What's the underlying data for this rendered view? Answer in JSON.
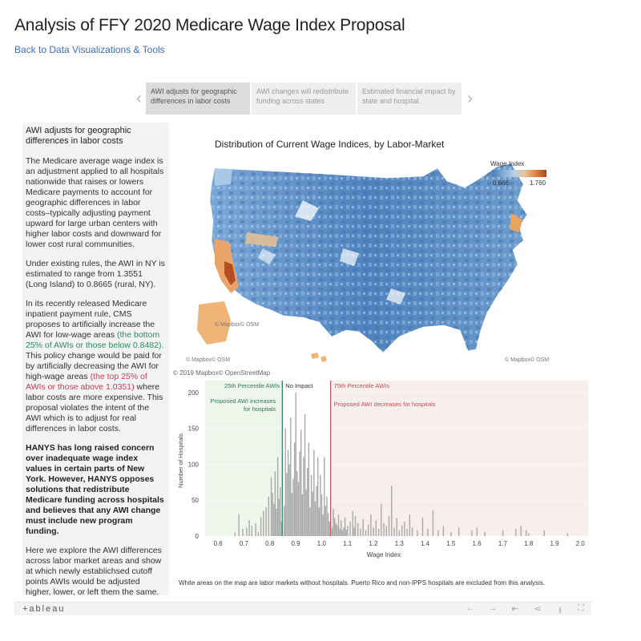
{
  "header": {
    "title": "Analysis of FFY 2020 Medicare Wage Index Proposal",
    "back_link": "Back to Data Visualizations & Tools"
  },
  "story": {
    "tabs": [
      {
        "label": "AWI adjusts for geographic differences in labor costs",
        "active": true
      },
      {
        "label": "AWI changes will redistribute funding across states",
        "active": false
      },
      {
        "label": "Estimated financial impact by state and hospital.",
        "active": false
      }
    ],
    "prev_icon": "chevron-left-icon",
    "next_icon": "chevron-right-icon"
  },
  "panel": {
    "heading": "AWI adjusts for geographic differences in labor costs",
    "p1": "The Medicare average wage index is an adjustment applied to all hospitals nationwide that raises or lowers Medicare payments to account for geographic differences in labor costs–typically adjusting payment upward for large urban centers with higher labor costs and downward for lower cost rural communities.",
    "p2": "Under existing rules, the AWI in NY is estimated to range from 1.3551 (Long Island) to 0.8665 (rural, NY).",
    "p3_a": "In its recently released Medicare inpatient payment rule, CMS proposes to artificially increase the AWI for low-wage areas ",
    "p3_green": "(the bottom 25% of AWIs or those below 0.8482).",
    "p3_b": "  This policy change would be paid for by artificially decreasing the AWI for high-wage areas ",
    "p3_red": "(the top 25% of AWIs or those above 1.0351)",
    "p3_c": " where labor costs are more expensive.  This proposal violates the intent of the AWI which is to adjust for real differences in labor costs.",
    "p4": "HANYS has long raised concern over inadequate wage index values in certain parts of New York.  However, HANYS opposes solutions that redistribute Medicare funding across hospitals and believes that any AWI change must include new program funding.",
    "p5": "Here we explore the AWI differences across labor market areas and show at which newly establichsed cutoff points AWIs would be adjusted higher, lower, or left them the same."
  },
  "map": {
    "title": "Distribution of Current Wage Indices, by Labor-Market",
    "legend_title": "Wage Index",
    "legend_min": "0.666",
    "legend_max": "1.760",
    "attribution_inner": "© Mapbox© OSM",
    "attribution_left": "© Mapbox© OSM",
    "attribution_right": "© Mapbox© OSM",
    "credit": "© 2019 Mapbox© OpenStreetMap"
  },
  "chart_data": {
    "type": "bar",
    "xlabel": "Wage Index",
    "ylabel": "Number of Hospitals",
    "xlim": [
      0.55,
      2.03
    ],
    "ylim": [
      0,
      210
    ],
    "xticks": [
      "0.6",
      "0.7",
      "0.8",
      "0.9",
      "1.0",
      "1.1",
      "1.2",
      "1.3",
      "1.4",
      "1.5",
      "1.6",
      "1.7",
      "1.8",
      "1.9",
      "2.0"
    ],
    "yticks": [
      "0",
      "50",
      "100",
      "150",
      "200"
    ],
    "bin_width": 0.005,
    "bins": [
      [
        0.665,
        5
      ],
      [
        0.68,
        30
      ],
      [
        0.695,
        10
      ],
      [
        0.71,
        12
      ],
      [
        0.72,
        22
      ],
      [
        0.73,
        14
      ],
      [
        0.745,
        18
      ],
      [
        0.755,
        6
      ],
      [
        0.765,
        26
      ],
      [
        0.775,
        35
      ],
      [
        0.785,
        40
      ],
      [
        0.795,
        55
      ],
      [
        0.805,
        82
      ],
      [
        0.81,
        60
      ],
      [
        0.815,
        45
      ],
      [
        0.82,
        90
      ],
      [
        0.825,
        38
      ],
      [
        0.83,
        110
      ],
      [
        0.835,
        52
      ],
      [
        0.84,
        68
      ],
      [
        0.845,
        20
      ],
      [
        0.855,
        42
      ],
      [
        0.86,
        150
      ],
      [
        0.865,
        88
      ],
      [
        0.87,
        120
      ],
      [
        0.875,
        100
      ],
      [
        0.88,
        165
      ],
      [
        0.885,
        60
      ],
      [
        0.89,
        80
      ],
      [
        0.895,
        130
      ],
      [
        0.9,
        200
      ],
      [
        0.905,
        90
      ],
      [
        0.91,
        75
      ],
      [
        0.915,
        118
      ],
      [
        0.92,
        148
      ],
      [
        0.925,
        58
      ],
      [
        0.93,
        110
      ],
      [
        0.935,
        170
      ],
      [
        0.94,
        65
      ],
      [
        0.945,
        95
      ],
      [
        0.95,
        130
      ],
      [
        0.955,
        40
      ],
      [
        0.96,
        85
      ],
      [
        0.965,
        62
      ],
      [
        0.97,
        120
      ],
      [
        0.975,
        48
      ],
      [
        0.98,
        70
      ],
      [
        0.985,
        110
      ],
      [
        0.99,
        40
      ],
      [
        0.995,
        85
      ],
      [
        1.0,
        58
      ],
      [
        1.005,
        30
      ],
      [
        1.01,
        110
      ],
      [
        1.015,
        42
      ],
      [
        1.02,
        55
      ],
      [
        1.025,
        32
      ],
      [
        1.03,
        20
      ],
      [
        1.04,
        12
      ],
      [
        1.045,
        38
      ],
      [
        1.05,
        25
      ],
      [
        1.055,
        18
      ],
      [
        1.06,
        15
      ],
      [
        1.065,
        30
      ],
      [
        1.07,
        10
      ],
      [
        1.075,
        22
      ],
      [
        1.08,
        8
      ],
      [
        1.085,
        12
      ],
      [
        1.09,
        26
      ],
      [
        1.095,
        9
      ],
      [
        1.1,
        14
      ],
      [
        1.11,
        20
      ],
      [
        1.12,
        35
      ],
      [
        1.125,
        12
      ],
      [
        1.13,
        28
      ],
      [
        1.14,
        18
      ],
      [
        1.15,
        10
      ],
      [
        1.16,
        24
      ],
      [
        1.17,
        8
      ],
      [
        1.18,
        16
      ],
      [
        1.19,
        30
      ],
      [
        1.2,
        12
      ],
      [
        1.21,
        22
      ],
      [
        1.22,
        10
      ],
      [
        1.23,
        45
      ],
      [
        1.24,
        18
      ],
      [
        1.25,
        14
      ],
      [
        1.26,
        28
      ],
      [
        1.27,
        70
      ],
      [
        1.28,
        12
      ],
      [
        1.29,
        25
      ],
      [
        1.3,
        8
      ],
      [
        1.31,
        15
      ],
      [
        1.32,
        20
      ],
      [
        1.33,
        10
      ],
      [
        1.34,
        30
      ],
      [
        1.35,
        12
      ],
      [
        1.37,
        8
      ],
      [
        1.39,
        26
      ],
      [
        1.41,
        10
      ],
      [
        1.43,
        36
      ],
      [
        1.45,
        8
      ],
      [
        1.47,
        14
      ],
      [
        1.5,
        6
      ],
      [
        1.53,
        12
      ],
      [
        1.58,
        8
      ],
      [
        1.6,
        12
      ],
      [
        1.63,
        6
      ],
      [
        1.7,
        8
      ],
      [
        1.75,
        10
      ],
      [
        1.77,
        14
      ],
      [
        1.79,
        8
      ],
      [
        1.8,
        4
      ],
      [
        1.86,
        8
      ],
      [
        1.95,
        4
      ]
    ],
    "regions": [
      {
        "from": 0.55,
        "to": 0.8482,
        "color": "#eef5ea"
      },
      {
        "from": 1.0351,
        "to": 2.03,
        "color": "#f7efec"
      }
    ],
    "reference_lines": [
      {
        "x": 0.8482,
        "color": "#2a7a5a",
        "label": "25th Percentile AWIs"
      },
      {
        "x": 1.0351,
        "color": "#c54a5a",
        "label": "75th Percentile AWIs"
      }
    ],
    "annotations": {
      "no_impact": "No Impact",
      "increase": "Proposed AWI increases for hospitals",
      "decrease": "Proposed AWI decreases for hospitals"
    },
    "bar_color": "#a9a9a9"
  },
  "footer_note": "White areas on the map are labor markets without hospitals.  Puerto Rico and non-IPPS hospitals are excluded from this analysis.",
  "toolbar": {
    "logo": "+ableau",
    "icons": [
      "undo-icon",
      "redo-icon",
      "revert-icon",
      "share-icon",
      "download-icon",
      "fullscreen-icon"
    ]
  }
}
